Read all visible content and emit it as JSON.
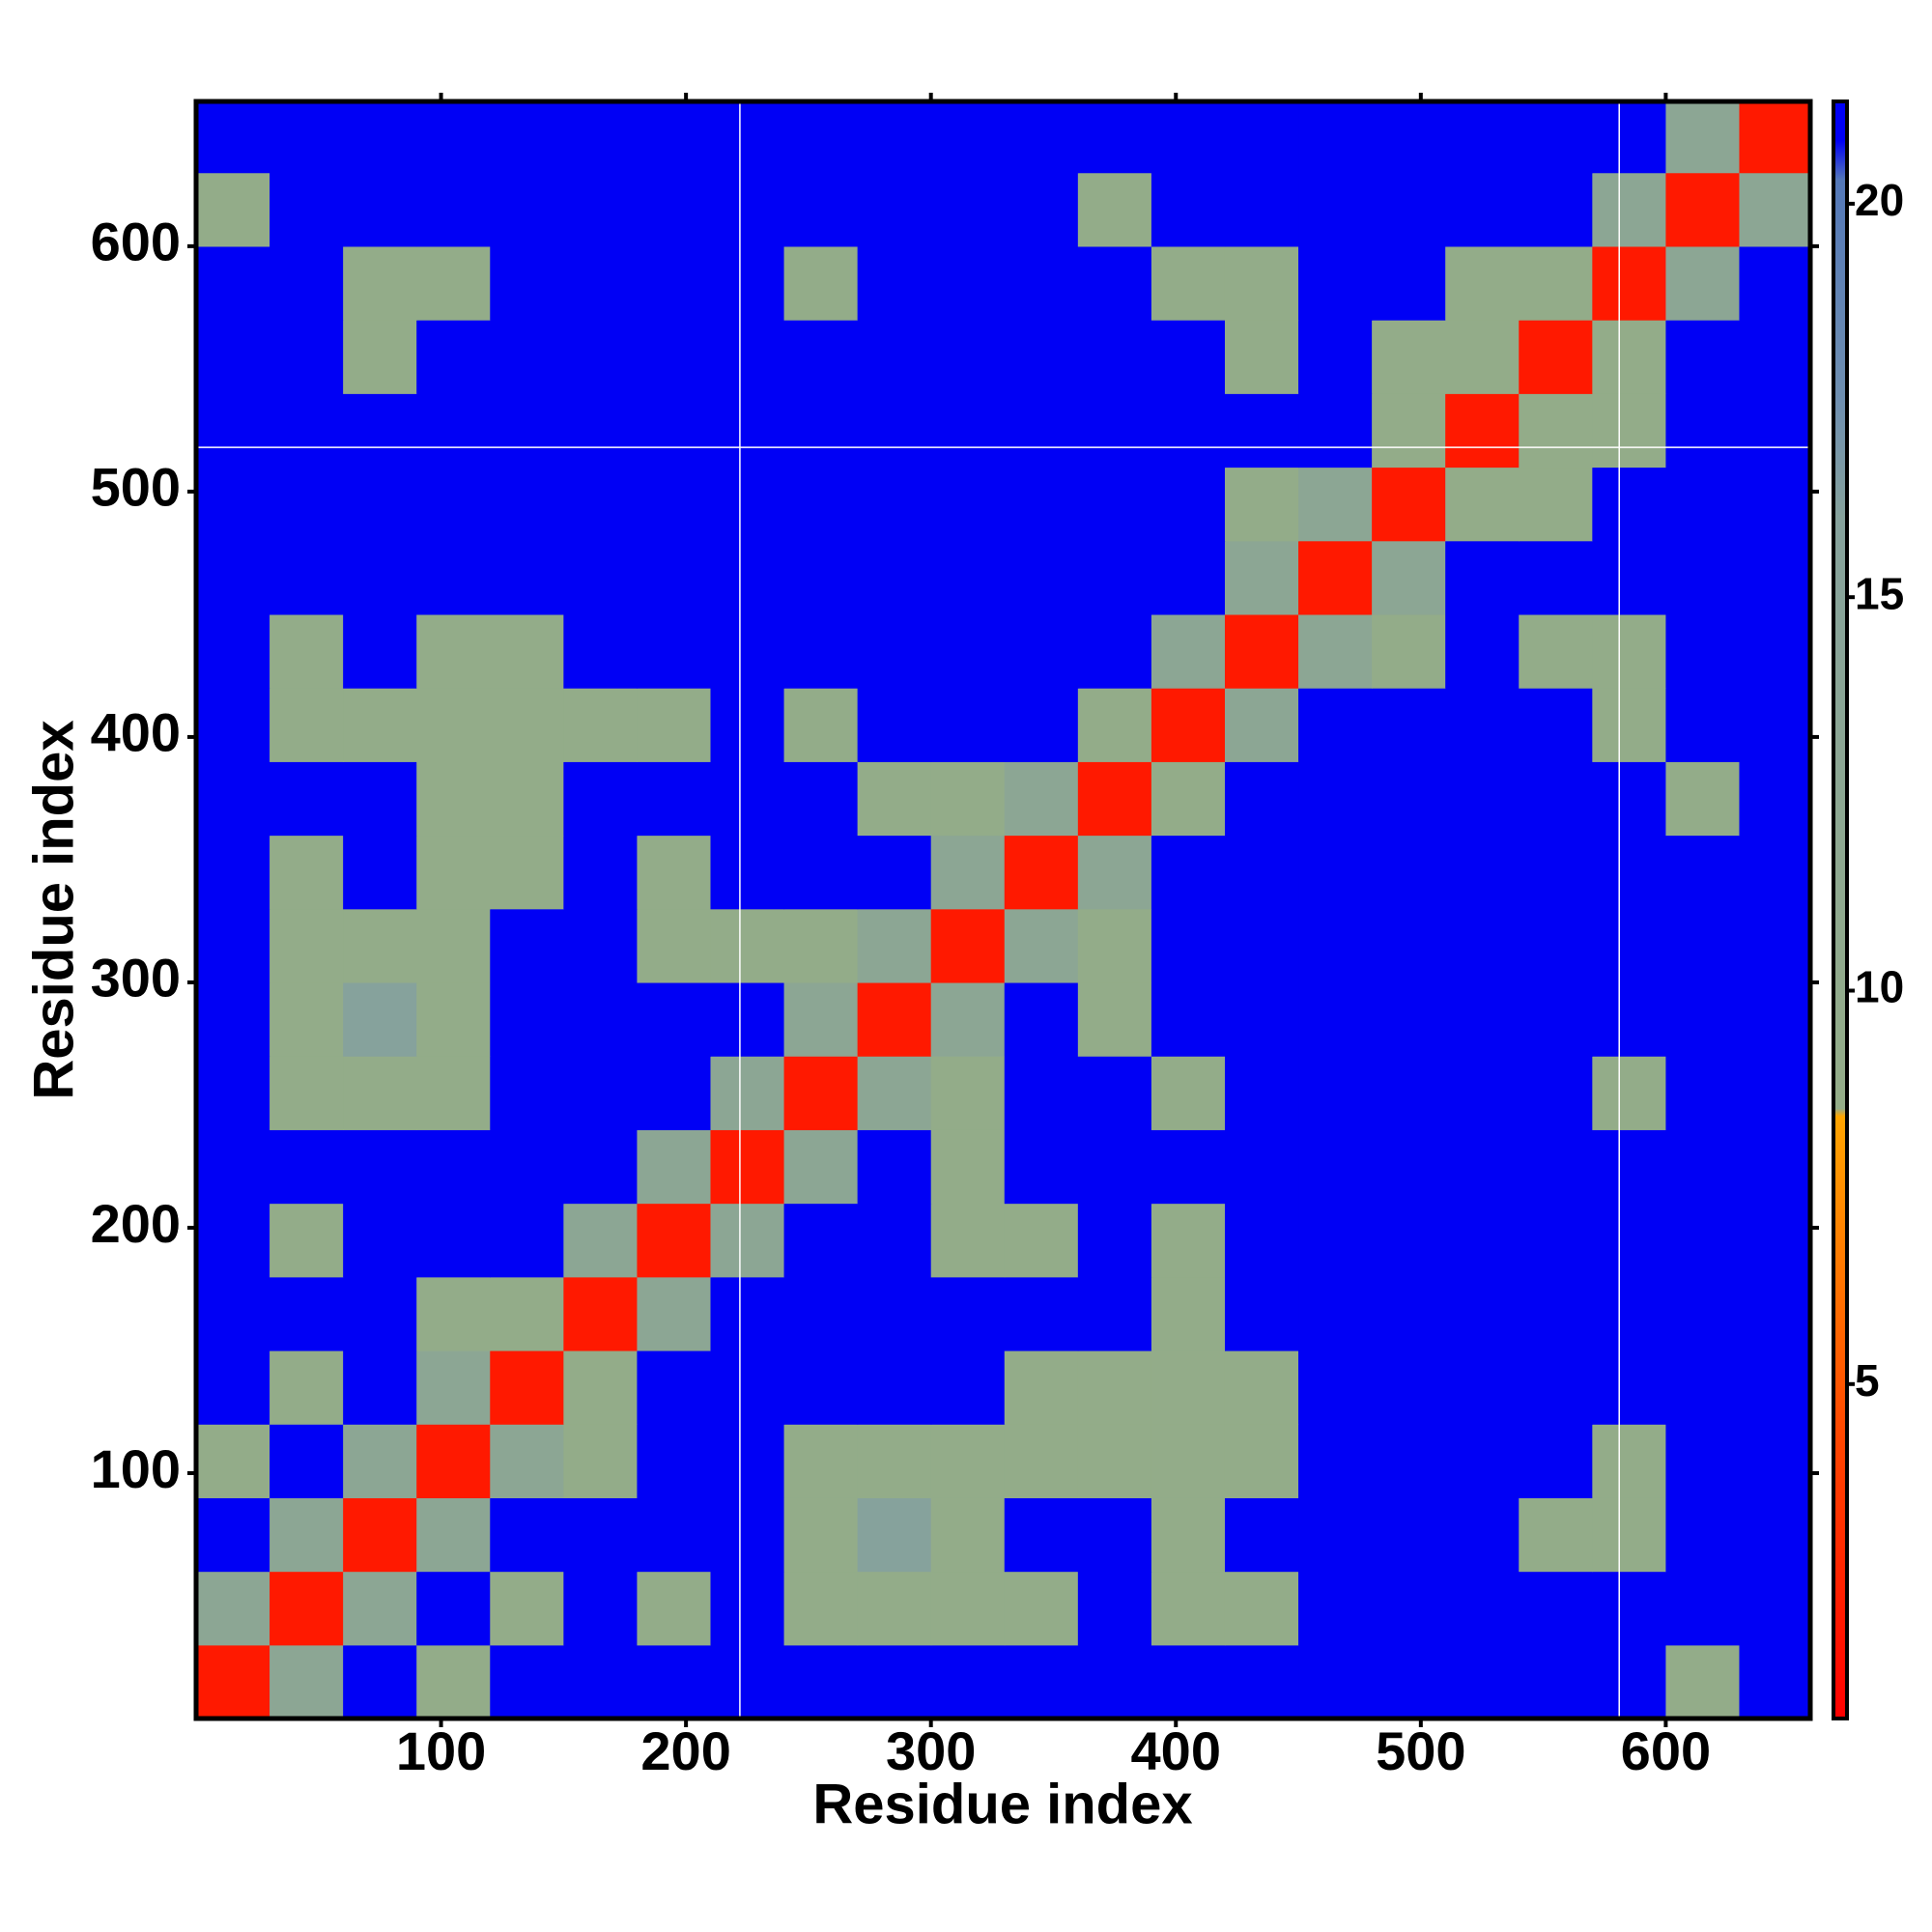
{
  "chart_data": {
    "type": "heatmap",
    "xlabel": "Residue index",
    "ylabel": "Residue index",
    "x_edges": [
      0,
      30,
      60,
      90,
      120,
      150,
      180,
      210,
      240,
      270,
      300,
      330,
      360,
      390,
      420,
      450,
      480,
      510,
      540,
      570,
      600,
      630,
      660
    ],
    "y_edges": [
      0,
      30,
      60,
      90,
      120,
      150,
      180,
      210,
      240,
      270,
      300,
      330,
      360,
      390,
      420,
      450,
      480,
      510,
      540,
      570,
      600,
      630,
      660
    ],
    "values": [
      [
        2,
        13,
        21,
        9,
        21,
        21,
        21,
        21,
        21,
        21,
        21,
        21,
        21,
        21,
        21,
        21,
        21,
        21,
        21,
        21,
        9,
        21
      ],
      [
        13,
        2,
        13,
        21,
        9,
        21,
        9,
        21,
        9,
        9,
        9,
        9,
        21,
        9,
        9,
        21,
        21,
        21,
        21,
        21,
        21,
        21
      ],
      [
        21,
        13,
        2,
        13,
        21,
        21,
        21,
        21,
        9,
        16,
        9,
        21,
        21,
        9,
        21,
        21,
        21,
        21,
        9,
        9,
        21,
        21
      ],
      [
        9,
        21,
        13,
        2,
        13,
        9,
        21,
        21,
        9,
        9,
        9,
        9,
        9,
        9,
        9,
        21,
        21,
        21,
        21,
        9,
        21,
        21
      ],
      [
        21,
        9,
        21,
        13,
        2,
        9,
        21,
        21,
        21,
        21,
        21,
        9,
        9,
        9,
        9,
        21,
        21,
        21,
        21,
        21,
        21,
        21
      ],
      [
        21,
        21,
        21,
        9,
        9,
        2,
        13,
        21,
        21,
        21,
        21,
        21,
        21,
        9,
        21,
        21,
        21,
        21,
        21,
        21,
        21,
        21
      ],
      [
        21,
        9,
        21,
        21,
        21,
        13,
        2,
        13,
        21,
        21,
        9,
        9,
        21,
        9,
        21,
        21,
        21,
        21,
        21,
        21,
        21,
        21
      ],
      [
        21,
        21,
        21,
        21,
        21,
        21,
        13,
        2,
        13,
        21,
        9,
        21,
        21,
        21,
        21,
        21,
        21,
        21,
        21,
        21,
        21,
        21
      ],
      [
        21,
        9,
        9,
        9,
        21,
        21,
        21,
        13,
        2,
        13,
        9,
        21,
        21,
        9,
        21,
        21,
        21,
        21,
        21,
        9,
        21,
        21
      ],
      [
        21,
        9,
        16,
        9,
        21,
        21,
        21,
        21,
        13,
        2,
        13,
        21,
        9,
        21,
        21,
        21,
        21,
        21,
        21,
        21,
        21,
        21
      ],
      [
        21,
        9,
        9,
        9,
        21,
        21,
        9,
        9,
        9,
        13,
        2,
        13,
        9,
        21,
        21,
        21,
        21,
        21,
        21,
        21,
        21,
        21
      ],
      [
        21,
        9,
        21,
        9,
        9,
        21,
        9,
        21,
        21,
        21,
        13,
        2,
        13,
        21,
        21,
        21,
        21,
        21,
        21,
        21,
        21,
        21
      ],
      [
        21,
        21,
        21,
        9,
        9,
        21,
        21,
        21,
        21,
        9,
        9,
        13,
        2,
        9,
        21,
        21,
        21,
        21,
        21,
        21,
        9,
        21
      ],
      [
        21,
        9,
        9,
        9,
        9,
        9,
        9,
        21,
        9,
        21,
        21,
        21,
        9,
        2,
        13,
        21,
        21,
        21,
        21,
        9,
        21,
        21
      ],
      [
        21,
        9,
        21,
        9,
        9,
        21,
        21,
        21,
        21,
        21,
        21,
        21,
        21,
        13,
        2,
        13,
        9,
        21,
        9,
        9,
        21,
        21
      ],
      [
        21,
        21,
        21,
        21,
        21,
        21,
        21,
        21,
        21,
        21,
        21,
        21,
        21,
        21,
        13,
        2,
        13,
        21,
        21,
        21,
        21,
        21
      ],
      [
        21,
        21,
        21,
        21,
        21,
        21,
        21,
        21,
        21,
        21,
        21,
        21,
        21,
        21,
        9,
        13,
        2,
        9,
        9,
        21,
        21,
        21
      ],
      [
        21,
        21,
        21,
        21,
        21,
        21,
        21,
        21,
        21,
        21,
        21,
        21,
        21,
        21,
        21,
        21,
        9,
        2,
        9,
        9,
        21,
        21
      ],
      [
        21,
        21,
        9,
        21,
        21,
        21,
        21,
        21,
        21,
        21,
        21,
        21,
        21,
        21,
        9,
        21,
        9,
        9,
        2,
        9,
        21,
        21
      ],
      [
        21,
        21,
        9,
        9,
        21,
        21,
        21,
        21,
        9,
        21,
        21,
        21,
        21,
        9,
        9,
        21,
        21,
        9,
        9,
        2,
        13,
        21
      ],
      [
        9,
        21,
        21,
        21,
        21,
        21,
        21,
        21,
        21,
        21,
        21,
        21,
        9,
        21,
        21,
        21,
        21,
        21,
        21,
        13,
        2,
        13
      ],
      [
        21,
        21,
        21,
        21,
        21,
        21,
        21,
        21,
        21,
        21,
        21,
        21,
        21,
        21,
        21,
        21,
        21,
        21,
        21,
        21,
        13,
        2
      ]
    ],
    "xlim": [
      0,
      659
    ],
    "ylim": [
      0,
      659
    ],
    "xticks": [
      100,
      200,
      300,
      400,
      500,
      600
    ],
    "yticks": [
      100,
      200,
      300,
      400,
      500,
      600
    ],
    "colorbar": {
      "lim": [
        0.75,
        21.3
      ],
      "ticks": [
        5,
        10,
        15,
        20
      ]
    },
    "colorscale": [
      {
        "value": 0.75,
        "color": "#ff0000"
      },
      {
        "value": 4.5,
        "color": "#ff4a00"
      },
      {
        "value": 8.4,
        "color": "#ffa500"
      },
      {
        "value": 8.5,
        "color": "#94ad88"
      },
      {
        "value": 16,
        "color": "#86a29c"
      },
      {
        "value": 17.5,
        "color": "#6f8fb0"
      },
      {
        "value": 20.3,
        "color": "#5478b8"
      },
      {
        "value": 20.8,
        "color": "#0000f5"
      },
      {
        "value": 21.3,
        "color": "#0000f5"
      }
    ],
    "vlines": [
      222,
      581
    ],
    "hlines": [
      518
    ],
    "line_color": "#ffffff"
  }
}
